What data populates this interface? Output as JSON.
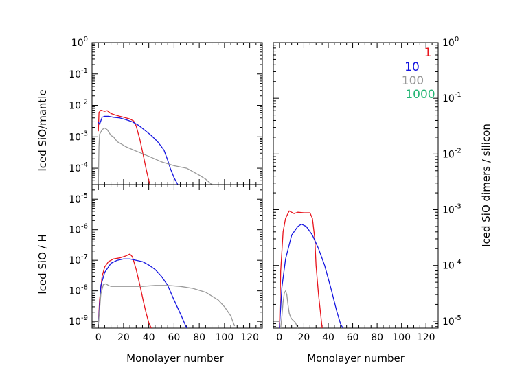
{
  "chart_data": {
    "type": "line",
    "series_colors": {
      "1": "#e8141c",
      "10": "#1414e0",
      "100": "#999999",
      "1000": "#22b573"
    },
    "legend": {
      "placement": "top-right of right panel",
      "entries": [
        {
          "label": "1",
          "color": "#e8141c"
        },
        {
          "label": "10",
          "color": "#1414e0"
        },
        {
          "label": "100",
          "color": "#999999"
        },
        {
          "label": "1000",
          "color": "#22b573"
        }
      ]
    },
    "x_tick_labels": [
      "0",
      "20",
      "40",
      "60",
      "80",
      "100",
      "120"
    ],
    "xlabel": "Monolayer number",
    "panels": [
      {
        "id": "top-left",
        "ylabel": "Iced SiO/mantle",
        "xlim": [
          -5,
          130
        ],
        "yscale": "log",
        "ylim": [
          3e-05,
          1
        ],
        "y_ticks": [
          {
            "value": 1,
            "mant": "10",
            "exp": "0"
          },
          {
            "value": 0.1,
            "mant": "10",
            "exp": "-1"
          },
          {
            "value": 0.01,
            "mant": "10",
            "exp": "-2"
          },
          {
            "value": 0.001,
            "mant": "10",
            "exp": "-3"
          },
          {
            "value": 0.0001,
            "mant": "10",
            "exp": "-4"
          }
        ],
        "series": [
          {
            "key": "1",
            "x": [
              0,
              0.5,
              2,
              5,
              7,
              10,
              13,
              17,
              20,
              25,
              28,
              30,
              33,
              36,
              38,
              40,
              41
            ],
            "y": [
              0.0015,
              0.006,
              0.007,
              0.0065,
              0.0068,
              0.0055,
              0.005,
              0.0045,
              0.0042,
              0.0037,
              0.0032,
              0.0022,
              0.0008,
              0.00022,
              9e-05,
              4e-05,
              3e-05
            ]
          },
          {
            "key": "10",
            "x": [
              0,
              1,
              3,
              5,
              8,
              12,
              17,
              22,
              27,
              32,
              37,
              42,
              47,
              52,
              55,
              57,
              60,
              63
            ],
            "y": [
              0.003,
              0.0025,
              0.0042,
              0.0045,
              0.0045,
              0.0042,
              0.004,
              0.0035,
              0.003,
              0.0023,
              0.0016,
              0.0011,
              0.0007,
              0.00038,
              0.00018,
              0.0001,
              5e-05,
              3e-05
            ]
          },
          {
            "key": "100",
            "x": [
              0,
              0.5,
              1,
              3,
              5,
              7,
              10,
              12,
              15,
              18,
              22,
              30,
              40,
              50,
              60,
              70,
              80,
              85,
              90
            ],
            "y": [
              3e-05,
              0.0005,
              0.0012,
              0.0017,
              0.0019,
              0.0017,
              0.0011,
              0.001,
              0.0007,
              0.0006,
              0.00048,
              0.00035,
              0.00024,
              0.00016,
              0.00012,
              0.0001,
              6e-05,
              4.5e-05,
              3e-05
            ]
          }
        ]
      },
      {
        "id": "bottom-left",
        "ylabel": "Iced SiO  / H",
        "xlim": [
          -5,
          130
        ],
        "yscale": "log",
        "ylim": [
          6e-10,
          3e-05
        ],
        "y_ticks": [
          {
            "value": 1e-05,
            "mant": "10",
            "exp": "-5"
          },
          {
            "value": 1e-06,
            "mant": "10",
            "exp": "-6"
          },
          {
            "value": 1e-07,
            "mant": "10",
            "exp": "-7"
          },
          {
            "value": 1e-08,
            "mant": "10",
            "exp": "-8"
          },
          {
            "value": 1e-09,
            "mant": "10",
            "exp": "-9"
          }
        ],
        "series": [
          {
            "key": "1",
            "x": [
              0,
              1,
              3,
              5,
              8,
              12,
              17,
              22,
              25,
              27,
              30,
              33,
              36,
              38,
              40,
              42
            ],
            "y": [
              8e-10,
              5e-09,
              3e-08,
              6e-08,
              9e-08,
              1.1e-07,
              1.2e-07,
              1.4e-07,
              1.6e-07,
              1.3e-07,
              5e-08,
              1.5e-08,
              4e-09,
              1.8e-09,
              9e-10,
              6e-10
            ]
          },
          {
            "key": "10",
            "x": [
              0,
              2,
              5,
              10,
              15,
              20,
              25,
              30,
              35,
              40,
              45,
              50,
              55,
              60,
              65,
              70
            ],
            "y": [
              8e-10,
              1.5e-08,
              4e-08,
              8e-08,
              1e-07,
              1.1e-07,
              1.1e-07,
              1e-07,
              9e-08,
              7e-08,
              5e-08,
              3e-08,
              1.5e-08,
              5e-09,
              1.8e-09,
              6e-10
            ]
          },
          {
            "key": "100",
            "x": [
              0,
              2,
              4,
              6,
              8,
              10,
              15,
              25,
              35,
              45,
              55,
              65,
              75,
              85,
              95,
              100,
              105,
              108
            ],
            "y": [
              8e-10,
              8e-09,
              1.6e-08,
              1.7e-08,
              1.5e-08,
              1.4e-08,
              1.4e-08,
              1.4e-08,
              1.4e-08,
              1.5e-08,
              1.5e-08,
              1.4e-08,
              1.2e-08,
              9e-09,
              5e-09,
              3e-09,
              1.5e-09,
              7e-10
            ]
          }
        ]
      },
      {
        "id": "right",
        "ylabel": "Iced SiO dimers / silicon",
        "xlim": [
          -5,
          130
        ],
        "yscale": "log",
        "ylim": [
          7.5e-06,
          1
        ],
        "y_ticks": [
          {
            "value": 1,
            "mant": "10",
            "exp": "0"
          },
          {
            "value": 0.1,
            "mant": "10",
            "exp": "-1"
          },
          {
            "value": 0.01,
            "mant": "10",
            "exp": "-2"
          },
          {
            "value": 0.001,
            "mant": "10",
            "exp": "-3"
          },
          {
            "value": 0.0001,
            "mant": "10",
            "exp": "-4"
          },
          {
            "value": 1e-05,
            "mant": "10",
            "exp": "-5"
          }
        ],
        "series": [
          {
            "key": "1",
            "x": [
              0,
              1,
              3,
              5,
              8,
              12,
              15,
              20,
              25,
              27,
              29,
              30,
              32,
              34,
              35
            ],
            "y": [
              7.5e-06,
              8e-05,
              0.0004,
              0.0007,
              0.00095,
              0.00085,
              0.0009,
              0.00088,
              0.00088,
              0.0007,
              0.0003,
              0.0001,
              3e-05,
              1.2e-05,
              7.5e-06
            ]
          },
          {
            "key": "10",
            "x": [
              0,
              2,
              5,
              10,
              15,
              18,
              22,
              27,
              32,
              37,
              42,
              47,
              50,
              52
            ],
            "y": [
              7.5e-06,
              4e-05,
              0.00013,
              0.00035,
              0.0005,
              0.00055,
              0.0005,
              0.00035,
              0.0002,
              0.0001,
              4e-05,
              1.5e-05,
              9e-06,
              7.5e-06
            ]
          },
          {
            "key": "100",
            "x": [
              1,
              2,
              3,
              4,
              5,
              6,
              7,
              8,
              9,
              10,
              12,
              13,
              14,
              15
            ],
            "y": [
              7.5e-06,
              1.2e-05,
              2.2e-05,
              3.2e-05,
              3.5e-05,
              3e-05,
              2e-05,
              1.4e-05,
              1.2e-05,
              1.1e-05,
              1e-05,
              9.5e-06,
              8.5e-06,
              7.5e-06
            ]
          }
        ]
      }
    ]
  }
}
